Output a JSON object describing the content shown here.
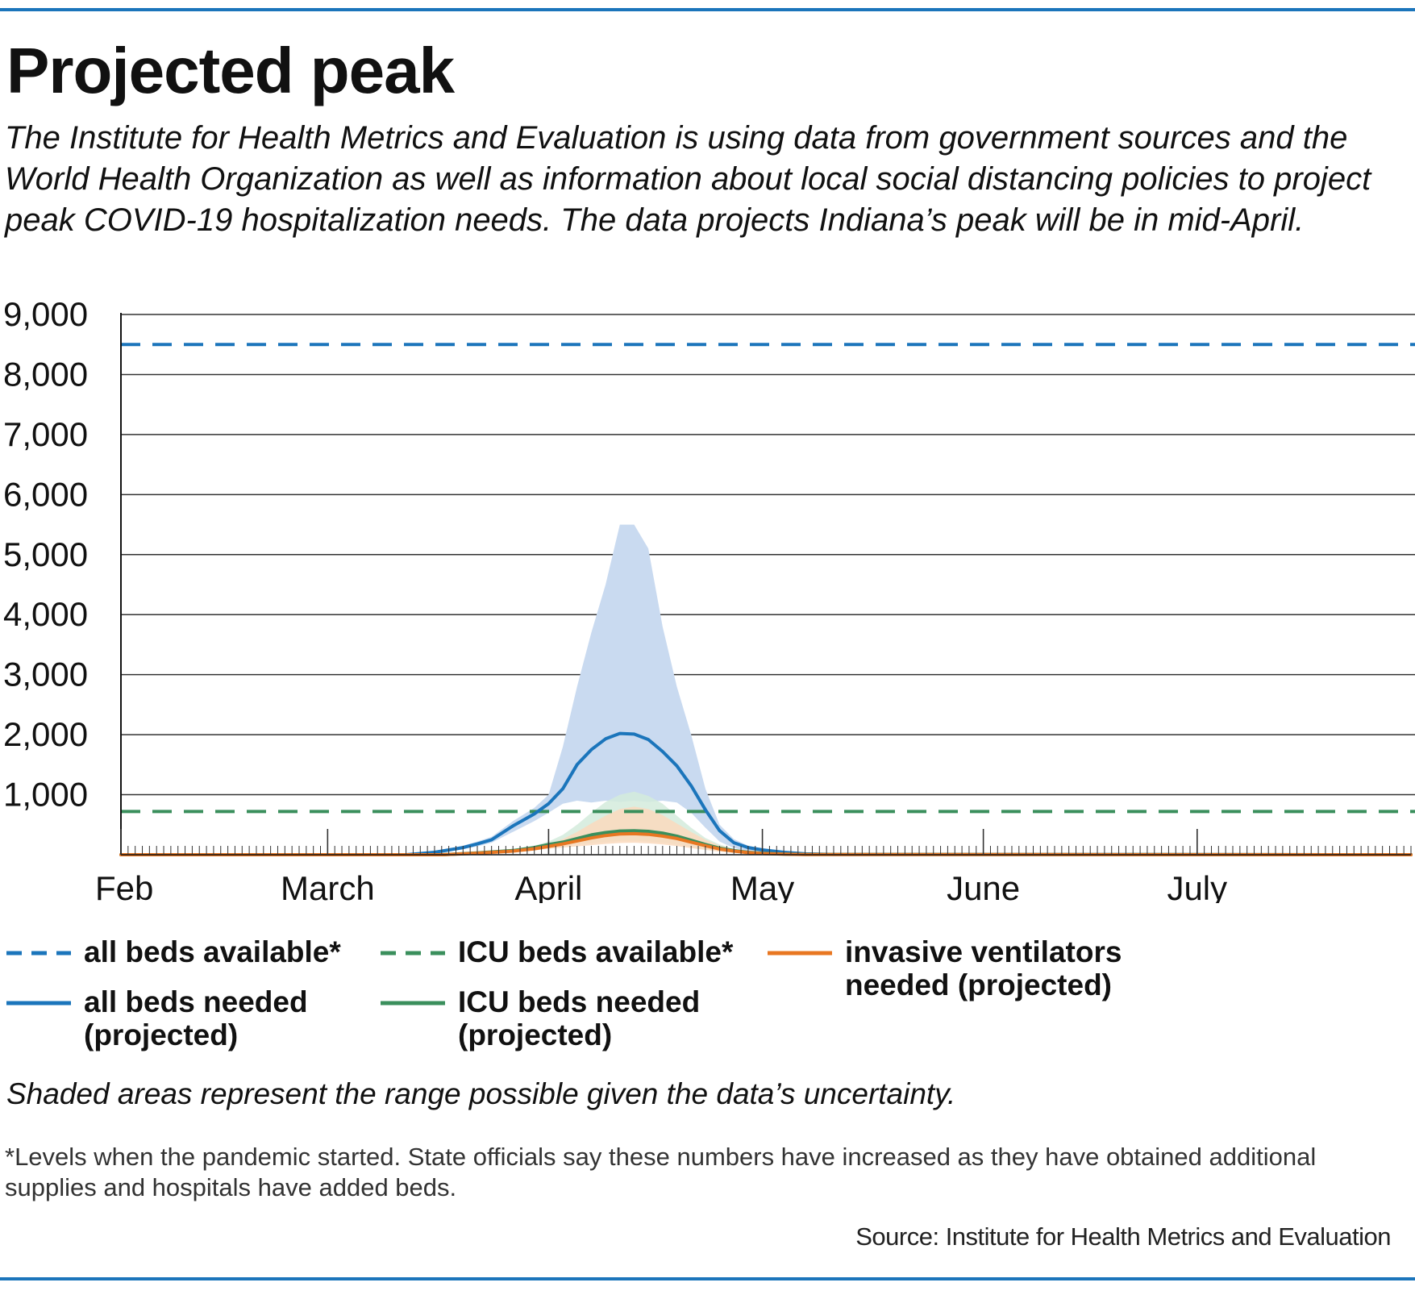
{
  "header": {
    "title": "Projected peak",
    "subtitle": "The Institute for Health Metrics and Evaluation is using data from government sources and the World Health Organization as well as information about local social distancing policies to project peak COVID-19 hospitalization needs. The data projects Indiana’s peak will be in mid-April."
  },
  "colors": {
    "accent_rule": "#1b75bb",
    "all_beds": "#1b75bb",
    "all_beds_band": "#c9daf0",
    "icu": "#3a8f5c",
    "icu_band": "#d4ebdc",
    "ventilators": "#e87722",
    "ventilators_band": "#fad9bd",
    "gridline": "#333333"
  },
  "legend": [
    {
      "label": "all beds available*",
      "style": "dashed",
      "color": "#1b75bb"
    },
    {
      "label": "ICU beds available*",
      "style": "dashed",
      "color": "#3a8f5c"
    },
    {
      "label": "invasive ventilators needed (projected)",
      "style": "solid",
      "color": "#e87722"
    },
    {
      "label": "all beds needed (projected)",
      "style": "solid",
      "color": "#1b75bb"
    },
    {
      "label": "ICU beds needed (projected)",
      "style": "solid",
      "color": "#3a8f5c"
    }
  ],
  "note": "Shaded areas represent the range possible given the data’s uncertainty.",
  "footnote": "*Levels when the pandemic started. State officials say these numbers have increased as they have obtained additional supplies and hospitals have added beds.",
  "source": "Source: Institute for Health Metrics and Evaluation",
  "chart_data": {
    "type": "line",
    "title": "",
    "xlabel": "",
    "ylabel": "",
    "x_unit": "day of 2020 (Feb 1 = 0)",
    "xlim": [
      0,
      181
    ],
    "ylim": [
      0,
      9000
    ],
    "grid": true,
    "legend_position": "bottom",
    "month_labels": [
      {
        "label": "Feb",
        "day": 0
      },
      {
        "label": "March",
        "day": 29
      },
      {
        "label": "April",
        "day": 60
      },
      {
        "label": "May",
        "day": 90
      },
      {
        "label": "June",
        "day": 121
      },
      {
        "label": "July",
        "day": 151
      }
    ],
    "y_ticks": [
      {
        "label": "9,000",
        "value": 9000
      },
      {
        "label": "8,000",
        "value": 8000
      },
      {
        "label": "7,000",
        "value": 7000
      },
      {
        "label": "6,000",
        "value": 6000
      },
      {
        "label": "5,000",
        "value": 5000
      },
      {
        "label": "4,000",
        "value": 4000
      },
      {
        "label": "3,000",
        "value": 3000
      },
      {
        "label": "2,000",
        "value": 2000
      },
      {
        "label": "1,000",
        "value": 1000
      }
    ],
    "reference_lines": [
      {
        "name": "all beds available*",
        "value": 8500,
        "color": "#1b75bb"
      },
      {
        "name": "ICU beds available*",
        "value": 720,
        "color": "#3a8f5c"
      }
    ],
    "series": [
      {
        "name": "all beds needed (projected)",
        "color": "#1b75bb",
        "band_color": "#c9daf0",
        "x": [
          0,
          40,
          44,
          48,
          50,
          52,
          55,
          58,
          60,
          62,
          64,
          66,
          68,
          70,
          72,
          74,
          76,
          78,
          80,
          82,
          84,
          86,
          88,
          90,
          93,
          96,
          100,
          181
        ],
        "values": [
          0,
          0,
          40,
          120,
          180,
          250,
          480,
          680,
          850,
          1100,
          1500,
          1750,
          1930,
          2020,
          2010,
          1920,
          1720,
          1480,
          1150,
          750,
          400,
          200,
          120,
          80,
          40,
          15,
          5,
          0
        ],
        "lower": [
          0,
          0,
          30,
          90,
          140,
          200,
          380,
          560,
          700,
          850,
          900,
          870,
          900,
          880,
          900,
          880,
          900,
          870,
          700,
          450,
          220,
          110,
          60,
          40,
          20,
          8,
          2,
          0
        ],
        "upper": [
          0,
          0,
          50,
          150,
          220,
          300,
          560,
          780,
          1000,
          1800,
          2800,
          3700,
          4500,
          5500,
          5500,
          5100,
          3800,
          2800,
          2000,
          1100,
          500,
          260,
          150,
          100,
          50,
          20,
          6,
          0
        ]
      },
      {
        "name": "ICU beds needed (projected)",
        "color": "#3a8f5c",
        "band_color": "#d4ebdc",
        "x": [
          0,
          45,
          50,
          55,
          58,
          60,
          62,
          64,
          66,
          68,
          70,
          72,
          74,
          76,
          78,
          80,
          82,
          84,
          86,
          88,
          90,
          93,
          96,
          181
        ],
        "values": [
          0,
          0,
          30,
          70,
          120,
          170,
          210,
          270,
          330,
          370,
          395,
          400,
          390,
          360,
          310,
          240,
          170,
          110,
          70,
          40,
          25,
          12,
          5,
          0
        ],
        "lower": [
          0,
          0,
          20,
          50,
          90,
          130,
          150,
          170,
          190,
          210,
          230,
          235,
          220,
          200,
          170,
          130,
          90,
          60,
          40,
          25,
          15,
          8,
          3,
          0
        ],
        "upper": [
          0,
          0,
          40,
          90,
          150,
          220,
          330,
          500,
          700,
          880,
          1000,
          1050,
          980,
          850,
          650,
          450,
          280,
          170,
          100,
          60,
          35,
          16,
          6,
          0
        ]
      },
      {
        "name": "invasive ventilators needed (projected)",
        "color": "#e87722",
        "band_color": "#fad9bd",
        "x": [
          0,
          45,
          50,
          55,
          58,
          60,
          62,
          64,
          66,
          68,
          70,
          72,
          74,
          76,
          78,
          80,
          82,
          84,
          86,
          88,
          90,
          93,
          96,
          181
        ],
        "values": [
          0,
          0,
          25,
          60,
          100,
          140,
          180,
          230,
          280,
          320,
          345,
          350,
          340,
          310,
          270,
          210,
          150,
          95,
          60,
          35,
          20,
          10,
          4,
          0
        ],
        "lower": [
          0,
          0,
          15,
          40,
          70,
          100,
          120,
          140,
          160,
          180,
          195,
          200,
          190,
          170,
          145,
          110,
          80,
          50,
          32,
          20,
          12,
          6,
          2,
          0
        ],
        "upper": [
          0,
          0,
          35,
          80,
          130,
          180,
          260,
          380,
          520,
          650,
          760,
          800,
          760,
          660,
          520,
          380,
          250,
          150,
          90,
          50,
          30,
          14,
          5,
          0
        ]
      }
    ]
  }
}
